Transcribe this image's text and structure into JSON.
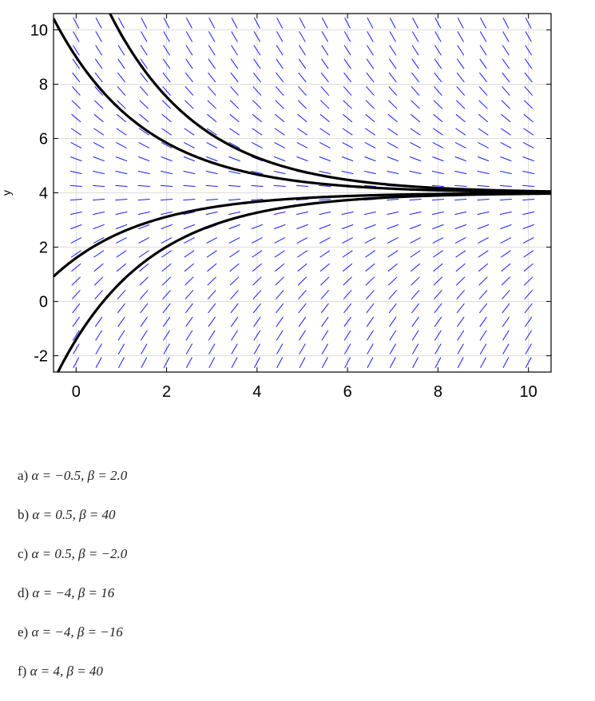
{
  "chart_data": {
    "type": "line",
    "xlabel": "",
    "ylabel": "y",
    "xlim": [
      -0.5,
      10.5
    ],
    "ylim": [
      -2.6,
      10.6
    ],
    "xticks": [
      "0",
      "2",
      "4",
      "6",
      "8",
      "10"
    ],
    "yticks": [
      "-2",
      "0",
      "2",
      "4",
      "6",
      "8",
      "10"
    ],
    "grid": true,
    "direction_field": {
      "equilibrium": 4,
      "rate": 0.5,
      "x_step": 0.5,
      "y_step": 0.5,
      "color": "#1a1aff"
    },
    "series": [
      {
        "y0": 13.6
      },
      {
        "y0": 9.0
      },
      {
        "y0": 1.6
      },
      {
        "y0": -1.4
      }
    ]
  },
  "options": [
    {
      "label": "a)",
      "text": "α = −0.5, β = 2.0"
    },
    {
      "label": "b)",
      "text": "α = 0.5, β = 40"
    },
    {
      "label": "c)",
      "text": "α = 0.5, β = −2.0"
    },
    {
      "label": "d)",
      "text": "α = −4, β = 16"
    },
    {
      "label": "e)",
      "text": "α = −4, β = −16"
    },
    {
      "label": "f)",
      "text": "α = 4, β = 40"
    }
  ]
}
